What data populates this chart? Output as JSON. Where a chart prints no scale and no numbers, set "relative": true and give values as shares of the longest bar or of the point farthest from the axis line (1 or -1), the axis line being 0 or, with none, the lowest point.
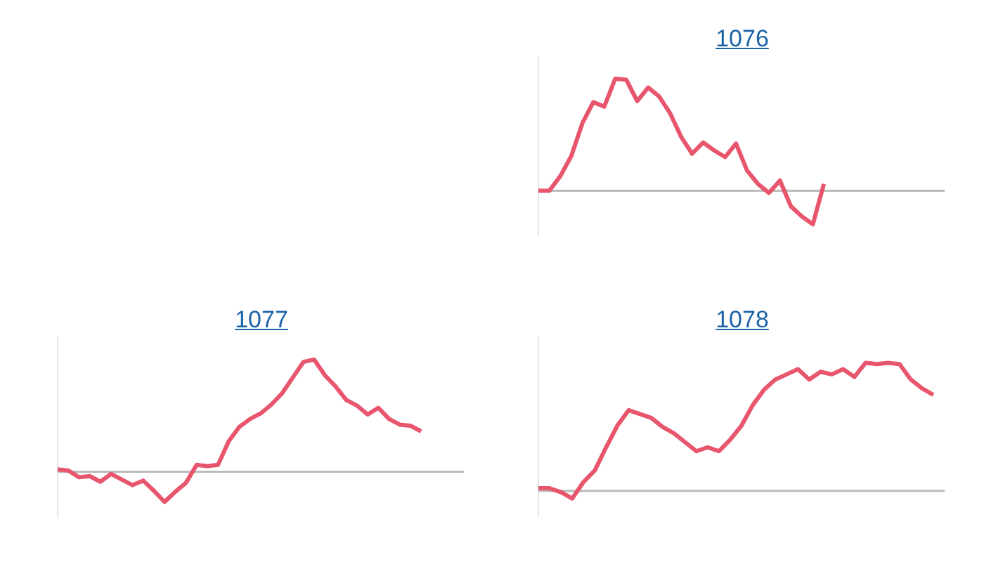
{
  "chart_data": [
    {
      "type": "line",
      "title": "1076",
      "relative": true,
      "legend": false,
      "marker": "none",
      "categories": [
        null,
        null,
        null,
        null,
        null,
        null,
        null,
        null,
        null,
        null,
        null,
        null,
        null,
        null,
        null,
        null,
        null,
        null,
        null,
        null,
        null,
        null,
        null,
        null,
        null,
        null,
        null,
        null,
        null,
        null,
        null,
        null,
        null,
        null,
        null,
        null,
        null,
        null
      ],
      "series": [
        {
          "color": "#e8566e",
          "values": [
            0,
            0,
            0.13,
            0.31,
            0.6,
            0.79,
            0.75,
            1,
            0.99,
            0.8,
            0.92,
            0.84,
            0.69,
            0.48,
            0.33,
            0.43,
            0.36,
            0.3,
            0.42,
            0.18,
            0.06,
            -0.02,
            0.09,
            -0.14,
            -0.23,
            -0.3,
            0.06,
            null,
            null,
            null,
            null,
            null,
            null,
            null,
            null,
            null,
            null,
            null
          ]
        }
      ]
    },
    {
      "type": "line",
      "title": "1077",
      "relative": true,
      "legend": false,
      "marker": "none",
      "categories": [
        null,
        null,
        null,
        null,
        null,
        null,
        null,
        null,
        null,
        null,
        null,
        null,
        null,
        null,
        null,
        null,
        null,
        null,
        null,
        null,
        null,
        null,
        null,
        null,
        null,
        null,
        null,
        null,
        null,
        null,
        null,
        null,
        null,
        null,
        null,
        null,
        null,
        null,
        null
      ],
      "series": [
        {
          "color": "#e8566e",
          "values": [
            0.02,
            0.01,
            -0.05,
            -0.04,
            -0.09,
            -0.02,
            -0.07,
            -0.12,
            -0.08,
            -0.17,
            -0.27,
            -0.18,
            -0.1,
            0.06,
            0.05,
            0.06,
            0.27,
            0.4,
            0.47,
            0.52,
            0.6,
            0.7,
            0.84,
            0.98,
            1,
            0.86,
            0.76,
            0.64,
            0.59,
            0.51,
            0.57,
            0.47,
            0.42,
            0.41,
            0.36,
            null,
            null,
            null,
            null
          ]
        }
      ]
    },
    {
      "type": "line",
      "title": "1078",
      "relative": true,
      "legend": false,
      "marker": "none",
      "categories": [
        null,
        null,
        null,
        null,
        null,
        null,
        null,
        null,
        null,
        null,
        null,
        null,
        null,
        null,
        null,
        null,
        null,
        null,
        null,
        null,
        null,
        null,
        null,
        null,
        null,
        null,
        null,
        null,
        null,
        null,
        null,
        null,
        null,
        null,
        null,
        null,
        null
      ],
      "series": [
        {
          "color": "#e8566e",
          "values": [
            0.02,
            0.02,
            -0.01,
            -0.06,
            0.07,
            0.16,
            0.34,
            0.51,
            0.63,
            0.6,
            0.57,
            0.5,
            0.45,
            0.38,
            0.31,
            0.34,
            0.31,
            0.4,
            0.51,
            0.67,
            0.79,
            0.87,
            0.91,
            0.95,
            0.87,
            0.93,
            0.91,
            0.95,
            0.89,
            1,
            0.99,
            1,
            0.99,
            0.87,
            0.8,
            0.75,
            null
          ]
        }
      ]
    }
  ]
}
